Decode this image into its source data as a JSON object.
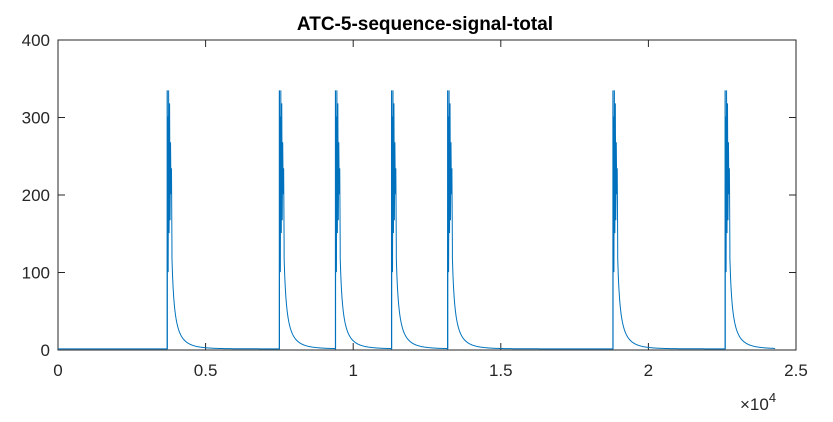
{
  "chart_data": {
    "type": "line",
    "title": "ATC-5-sequence-signal-total",
    "xlabel": "",
    "ylabel": "",
    "xlim": [
      0,
      25000
    ],
    "ylim": [
      0,
      400
    ],
    "x_ticks": [
      0,
      5000,
      10000,
      15000,
      20000,
      25000
    ],
    "x_tick_labels": [
      "0",
      "0.5",
      "1",
      "1.5",
      "2",
      "2.5"
    ],
    "x_exponent_label": "×10",
    "x_exponent_power": "4",
    "y_ticks": [
      0,
      100,
      200,
      300,
      400
    ],
    "y_tick_labels": [
      "0",
      "100",
      "200",
      "300",
      "400"
    ],
    "grid": false,
    "line_color": "#0072bd",
    "series": [
      {
        "name": "",
        "x_max": 24300,
        "baseline": 1.5,
        "spikes": [
          {
            "x": 3700,
            "peak": 335
          },
          {
            "x": 7500,
            "peak": 335
          },
          {
            "x": 9400,
            "peak": 335
          },
          {
            "x": 11300,
            "peak": 335
          },
          {
            "x": 13200,
            "peak": 335
          },
          {
            "x": 18800,
            "peak": 335
          },
          {
            "x": 22600,
            "peak": 335
          }
        ]
      }
    ]
  }
}
